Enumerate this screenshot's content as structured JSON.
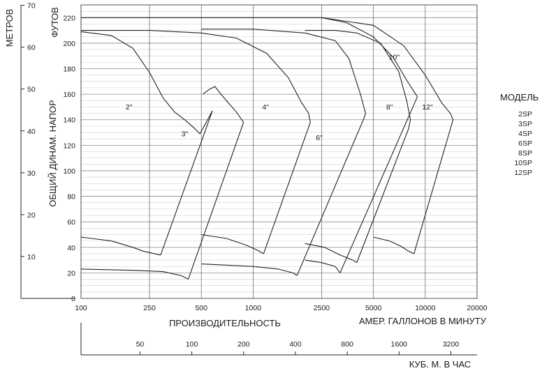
{
  "chart_data": {
    "type": "line",
    "xscale": "log",
    "xlim": [
      100,
      20000
    ],
    "ylim": [
      0,
      230
    ],
    "x_ticks": [
      100,
      250,
      500,
      1000,
      2500,
      5000,
      10000,
      20000
    ],
    "y_ticks": [
      0,
      20,
      40,
      60,
      80,
      100,
      120,
      140,
      160,
      180,
      200,
      220
    ],
    "meters_ticks": [
      10,
      20,
      30,
      40,
      50,
      60,
      70
    ],
    "bottom_axis_ticks": [
      50,
      100,
      200,
      400,
      800,
      1600,
      3200
    ],
    "xlabel": "АМЕР. ГАЛЛОНОВ В МИНУТУ",
    "xlabel2": "ПРОИЗВОДИТЕЛЬНОСТЬ",
    "ylabel": "ОБЩИЙ ДИНАМ. НАПОР",
    "ylabel_units": "ФУТОВ",
    "y2label": "МЕТРОВ",
    "bottom_xlabel": "КУБ. М. В ЧАС",
    "legend_title": "МОДЕЛЬ",
    "legend_items": [
      "2SP",
      "3SP",
      "4SP",
      "6SP",
      "8SP",
      "10SP",
      "12SP"
    ],
    "grid": true,
    "series": [
      {
        "name": "2\"",
        "label_at": [
          190,
          148
        ],
        "top": [
          [
            100,
            209
          ],
          [
            150,
            206
          ],
          [
            200,
            196
          ],
          [
            250,
            177
          ],
          [
            300,
            157
          ],
          [
            350,
            146
          ],
          [
            400,
            140
          ],
          [
            450,
            134
          ],
          [
            490,
            129
          ],
          [
            520,
            135
          ],
          [
            580,
            147
          ]
        ],
        "bottom": [
          [
            100,
            48
          ],
          [
            150,
            45
          ],
          [
            200,
            40
          ],
          [
            230,
            37
          ],
          [
            290,
            34
          ]
        ]
      },
      {
        "name": "3\"",
        "label_at": [
          400,
          127
        ],
        "top": [
          [
            510,
            160
          ],
          [
            560,
            164
          ],
          [
            600,
            166
          ],
          [
            650,
            160
          ],
          [
            720,
            153
          ],
          [
            800,
            146
          ],
          [
            880,
            138
          ]
        ],
        "bottom": [
          [
            100,
            23
          ],
          [
            200,
            22
          ],
          [
            300,
            21
          ],
          [
            380,
            18
          ],
          [
            420,
            15
          ]
        ]
      },
      {
        "name": "4\"",
        "label_at": [
          1180,
          148
        ],
        "top": [
          [
            100,
            210
          ],
          [
            250,
            210
          ],
          [
            500,
            208
          ],
          [
            800,
            204
          ],
          [
            1200,
            192
          ],
          [
            1600,
            173
          ],
          [
            1900,
            154
          ],
          [
            2100,
            145
          ],
          [
            2150,
            138
          ]
        ],
        "bottom": [
          [
            500,
            50
          ],
          [
            700,
            47
          ],
          [
            900,
            42
          ],
          [
            1050,
            38
          ],
          [
            1150,
            35
          ]
        ]
      },
      {
        "name": "6\"",
        "label_at": [
          2420,
          124
        ],
        "top": [
          [
            500,
            211
          ],
          [
            1000,
            211
          ],
          [
            2000,
            208
          ],
          [
            3000,
            202
          ],
          [
            3600,
            188
          ],
          [
            4200,
            160
          ],
          [
            4500,
            145
          ],
          [
            4400,
            141
          ]
        ],
        "bottom": [
          [
            500,
            27
          ],
          [
            1000,
            25
          ],
          [
            1400,
            23
          ],
          [
            1700,
            20
          ],
          [
            1800,
            18
          ]
        ]
      },
      {
        "name": "8\"",
        "label_at": [
          6200,
          148
        ],
        "top": [
          [
            2000,
            210
          ],
          [
            3000,
            210
          ],
          [
            4000,
            208
          ],
          [
            5500,
            200
          ],
          [
            7000,
            178
          ],
          [
            7800,
            155
          ],
          [
            8200,
            140
          ],
          [
            8000,
            133
          ]
        ],
        "bottom": [
          [
            2000,
            43
          ],
          [
            2600,
            40
          ],
          [
            3200,
            34
          ],
          [
            3800,
            30
          ],
          [
            4000,
            28
          ]
        ]
      },
      {
        "name": "10\"",
        "label_at": [
          6600,
          187
        ],
        "top": [
          [
            100,
            220
          ],
          [
            1000,
            220
          ],
          [
            2500,
            220
          ],
          [
            3500,
            216
          ],
          [
            5000,
            205
          ],
          [
            6500,
            189
          ],
          [
            7800,
            171
          ],
          [
            9000,
            158
          ]
        ],
        "bottom": [
          [
            2000,
            30
          ],
          [
            2500,
            28
          ],
          [
            3000,
            25
          ],
          [
            3200,
            20
          ]
        ]
      },
      {
        "name": "12\"",
        "label_at": [
          10300,
          148
        ],
        "top": [
          [
            2500,
            220
          ],
          [
            5000,
            214
          ],
          [
            7500,
            198
          ],
          [
            10000,
            175
          ],
          [
            12500,
            153
          ],
          [
            14000,
            145
          ],
          [
            14500,
            140
          ]
        ],
        "bottom": [
          [
            5000,
            48
          ],
          [
            6200,
            45
          ],
          [
            7200,
            41
          ],
          [
            8000,
            37
          ],
          [
            8600,
            35
          ]
        ]
      }
    ]
  }
}
